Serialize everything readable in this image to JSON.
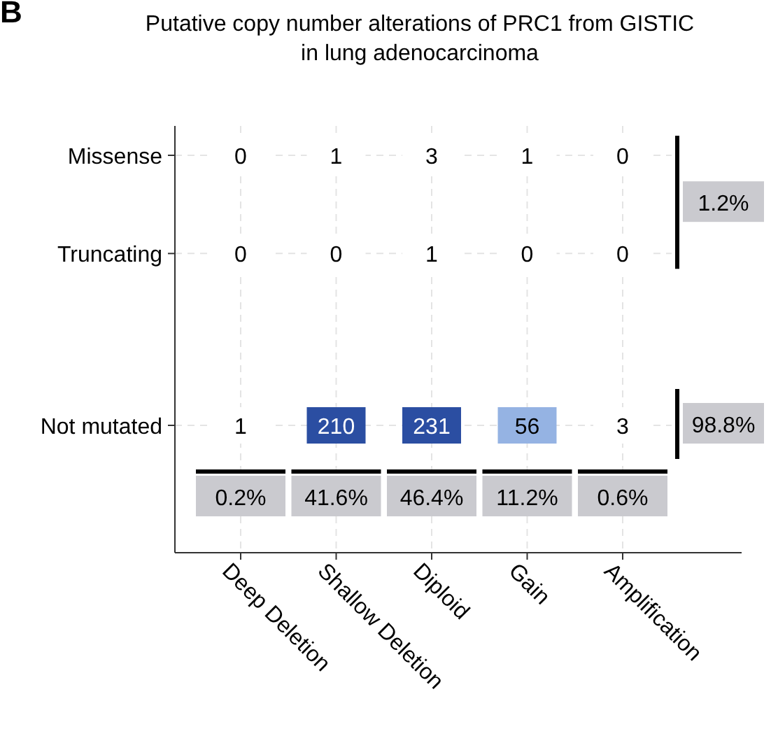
{
  "chart_data": {
    "type": "heatmap",
    "title": "Putative copy number alterations of PRC1 from GISTIC\nin lung adenocarcinoma",
    "categories": [
      "Deep Deletion",
      "Shallow Deletion",
      "Diploid",
      "Gain",
      "Amplification"
    ],
    "y_categories": [
      "Missense",
      "Truncating",
      "Not mutated"
    ],
    "cells": [
      [
        0,
        1,
        3,
        1,
        0
      ],
      [
        0,
        0,
        1,
        0,
        0
      ],
      [
        1,
        210,
        231,
        56,
        3
      ]
    ],
    "data_labels": true,
    "grid": true,
    "annotations": [
      "B",
      "0.2%",
      "41.6%",
      "46.4%",
      "11.2%",
      "0.6%",
      "1.2%",
      "98.8%"
    ]
  }
}
